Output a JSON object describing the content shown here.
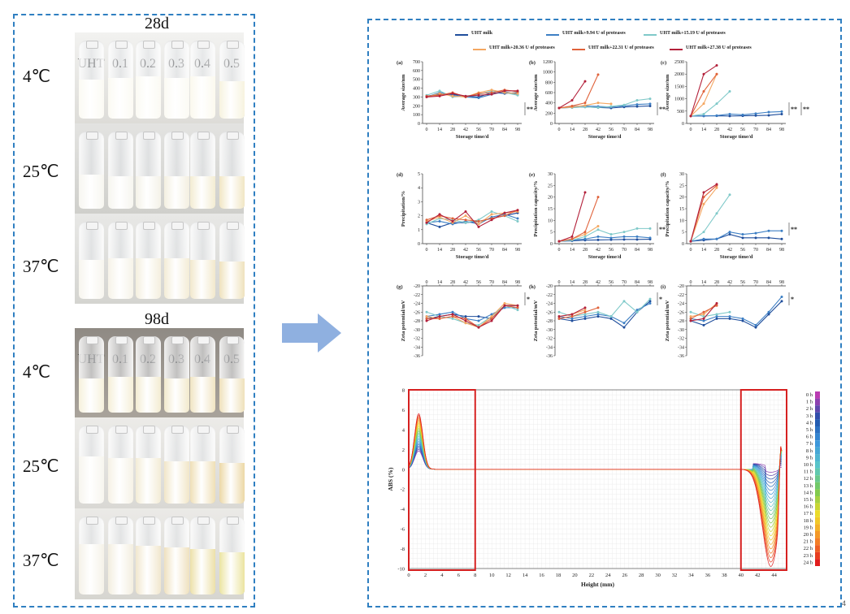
{
  "left_panel": {
    "blocks": [
      {
        "time": "28d",
        "sample_labels": [
          "UHT",
          "0.1",
          "0.2",
          "0.3",
          "0.4",
          "0.5"
        ],
        "temps": [
          "4℃",
          "25℃",
          "37℃"
        ]
      },
      {
        "time": "98d",
        "sample_labels": [
          "UHT",
          "0.1",
          "0.2",
          "0.3",
          "0.4",
          "0.5"
        ],
        "temps": [
          "4℃",
          "25℃",
          "37℃"
        ]
      }
    ]
  },
  "legend": {
    "items": [
      {
        "label": "UHT milk",
        "color": "#1f4e9c"
      },
      {
        "label": "UHT milk+9.94 U of proteases",
        "color": "#3d7fc4"
      },
      {
        "label": "UHT milk+15.19 U of proteases",
        "color": "#7fc9c9"
      },
      {
        "label": "UHT milk+20.36 U of proteases",
        "color": "#f4a761"
      },
      {
        "label": "UHT milk+22.31 U of proteases",
        "color": "#e0623a"
      },
      {
        "label": "UHT milk+27.38 U of proteases",
        "color": "#b3203a"
      }
    ]
  },
  "chart_data": [
    {
      "panel": "(a)",
      "type": "line",
      "ylabel": "Average size/nm",
      "xlabel": "Storage time/d",
      "ylim": [
        0,
        700
      ],
      "yticks": [
        0,
        100,
        200,
        300,
        400,
        500,
        600,
        700
      ],
      "x": [
        0,
        14,
        28,
        42,
        56,
        70,
        84,
        98
      ],
      "significance": "**",
      "series": [
        {
          "name": "UHT milk",
          "values": [
            310,
            330,
            330,
            310,
            300,
            350,
            340,
            350
          ]
        },
        {
          "name": "UHT milk+9.94 U of proteases",
          "values": [
            300,
            350,
            320,
            300,
            290,
            330,
            360,
            330
          ]
        },
        {
          "name": "UHT milk+15.19 U of proteases",
          "values": [
            320,
            370,
            300,
            310,
            330,
            370,
            350,
            320
          ]
        },
        {
          "name": "UHT milk+20.36 U of proteases",
          "values": [
            300,
            340,
            310,
            300,
            350,
            380,
            350,
            340
          ]
        },
        {
          "name": "UHT milk+22.31 U of proteases",
          "values": [
            310,
            320,
            350,
            300,
            340,
            350,
            380,
            360
          ]
        },
        {
          "name": "UHT milk+27.38 U of proteases",
          "values": [
            300,
            310,
            340,
            310,
            320,
            330,
            370,
            370
          ]
        }
      ]
    },
    {
      "panel": "(b)",
      "type": "line",
      "ylabel": "Average size/nm",
      "xlabel": "Storage time/d",
      "ylim": [
        0,
        1200
      ],
      "yticks": [
        0,
        200,
        400,
        600,
        800,
        1000,
        1200
      ],
      "x": [
        0,
        14,
        28,
        42,
        56,
        70,
        84,
        98
      ],
      "significance": "**",
      "series": [
        {
          "name": "UHT milk",
          "values": [
            300,
            310,
            320,
            310,
            300,
            320,
            330,
            340
          ]
        },
        {
          "name": "UHT milk+9.94 U of proteases",
          "values": [
            300,
            330,
            340,
            330,
            320,
            340,
            370,
            380
          ]
        },
        {
          "name": "UHT milk+15.19 U of proteases",
          "values": [
            300,
            310,
            320,
            310,
            330,
            360,
            450,
            480
          ]
        },
        {
          "name": "UHT milk+20.36 U of proteases",
          "values": [
            300,
            320,
            350,
            400,
            380,
            null,
            null,
            null
          ]
        },
        {
          "name": "UHT milk+22.31 U of proteases",
          "values": [
            300,
            340,
            400,
            950,
            null,
            null,
            null,
            null
          ]
        },
        {
          "name": "UHT milk+27.38 U of proteases",
          "values": [
            300,
            450,
            820,
            null,
            null,
            null,
            null,
            null
          ]
        }
      ]
    },
    {
      "panel": "(c)",
      "type": "line",
      "ylabel": "Average size/nm",
      "xlabel": "Storage time/d",
      "ylim": [
        0,
        2500
      ],
      "yticks": [
        0,
        500,
        1000,
        1500,
        2000,
        2500
      ],
      "x": [
        0,
        14,
        28,
        42,
        56,
        70,
        84,
        98
      ],
      "significance": "** **",
      "series": [
        {
          "name": "UHT milk",
          "values": [
            300,
            300,
            310,
            300,
            310,
            320,
            330,
            380
          ]
        },
        {
          "name": "UHT milk+9.94 U of proteases",
          "values": [
            300,
            310,
            320,
            380,
            350,
            400,
            460,
            480
          ]
        },
        {
          "name": "UHT milk+15.19 U of proteases",
          "values": [
            300,
            380,
            800,
            1300,
            null,
            null,
            null,
            null
          ]
        },
        {
          "name": "UHT milk+20.36 U of proteases",
          "values": [
            300,
            800,
            2000,
            null,
            null,
            null,
            null,
            null
          ]
        },
        {
          "name": "UHT milk+22.31 U of proteases",
          "values": [
            300,
            1300,
            2000,
            null,
            null,
            null,
            null,
            null
          ]
        },
        {
          "name": "UHT milk+27.38 U of proteases",
          "values": [
            300,
            2000,
            2350,
            null,
            null,
            null,
            null,
            null
          ]
        }
      ]
    },
    {
      "panel": "(d)",
      "type": "line",
      "ylabel": "Precipitation/%",
      "xlabel": "Storage time/d",
      "ylim": [
        0,
        5
      ],
      "yticks": [
        0,
        1,
        2,
        3,
        4,
        5
      ],
      "x": [
        0,
        14,
        28,
        42,
        56,
        70,
        84,
        98
      ],
      "significance": "",
      "series": [
        {
          "name": "UHT milk",
          "values": [
            1.5,
            1.2,
            1.5,
            1.5,
            1.6,
            1.8,
            2.0,
            2.2
          ]
        },
        {
          "name": "UHT milk+9.94 U of proteases",
          "values": [
            1.5,
            1.6,
            1.4,
            1.6,
            1.4,
            1.9,
            2.1,
            1.8
          ]
        },
        {
          "name": "UHT milk+15.19 U of proteases",
          "values": [
            1.4,
            1.8,
            1.7,
            1.5,
            1.7,
            2.3,
            2.0,
            1.6
          ]
        },
        {
          "name": "UHT milk+20.36 U of proteases",
          "values": [
            1.6,
            1.9,
            1.5,
            2.0,
            1.4,
            2.1,
            2.2,
            2.3
          ]
        },
        {
          "name": "UHT milk+22.31 U of proteases",
          "values": [
            1.7,
            2.0,
            1.8,
            1.7,
            1.6,
            1.8,
            2.0,
            2.4
          ]
        },
        {
          "name": "UHT milk+27.38 U of proteases",
          "values": [
            1.5,
            2.1,
            1.6,
            2.3,
            1.2,
            1.7,
            2.2,
            2.4
          ]
        }
      ]
    },
    {
      "panel": "(e)",
      "type": "line",
      "ylabel": "Precipitation capacity/%",
      "xlabel": "Storage time/d",
      "ylim": [
        0,
        30
      ],
      "yticks": [
        0,
        5,
        10,
        15,
        20,
        25,
        30
      ],
      "x": [
        0,
        14,
        28,
        42,
        56,
        70,
        84,
        98
      ],
      "significance": "**",
      "series": [
        {
          "name": "UHT milk",
          "values": [
            1,
            1.2,
            1.5,
            1.6,
            1.7,
            1.8,
            1.8,
            1.9
          ]
        },
        {
          "name": "UHT milk+9.94 U of proteases",
          "values": [
            1,
            1.5,
            2,
            3,
            2.5,
            3,
            3,
            2.5
          ]
        },
        {
          "name": "UHT milk+15.19 U of proteases",
          "values": [
            1,
            1.5,
            3,
            6,
            4,
            5,
            6.5,
            6.5
          ]
        },
        {
          "name": "UHT milk+20.36 U of proteases",
          "values": [
            1,
            2,
            4,
            7.5,
            null,
            null,
            null,
            null
          ]
        },
        {
          "name": "UHT milk+22.31 U of proteases",
          "values": [
            1,
            2,
            5,
            20,
            null,
            null,
            null,
            null
          ]
        },
        {
          "name": "UHT milk+27.38 U of proteases",
          "values": [
            1,
            3,
            22,
            null,
            null,
            null,
            null,
            null
          ]
        }
      ]
    },
    {
      "panel": "(f)",
      "type": "line",
      "ylabel": "Precipitation capacity/%",
      "xlabel": "Storage time/d",
      "ylim": [
        0,
        30
      ],
      "yticks": [
        0,
        5,
        10,
        15,
        20,
        25,
        30
      ],
      "x": [
        0,
        14,
        28,
        42,
        56,
        70,
        84,
        98
      ],
      "significance": "**",
      "series": [
        {
          "name": "UHT milk",
          "values": [
            1,
            1.5,
            2,
            4,
            2.5,
            2.5,
            2.5,
            2
          ]
        },
        {
          "name": "UHT milk+9.94 U of proteases",
          "values": [
            1,
            2,
            2,
            5,
            4,
            4.5,
            5.5,
            5.5
          ]
        },
        {
          "name": "UHT milk+15.19 U of proteases",
          "values": [
            1,
            5,
            13,
            21,
            null,
            null,
            null,
            null
          ]
        },
        {
          "name": "UHT milk+20.36 U of proteases",
          "values": [
            1,
            17,
            24,
            null,
            null,
            null,
            null,
            null
          ]
        },
        {
          "name": "UHT milk+22.31 U of proteases",
          "values": [
            1,
            20,
            25,
            null,
            null,
            null,
            null,
            null
          ]
        },
        {
          "name": "UHT milk+27.38 U of proteases",
          "values": [
            1,
            22,
            25.5,
            null,
            null,
            null,
            null,
            null
          ]
        }
      ]
    },
    {
      "panel": "(g)",
      "type": "line",
      "ylabel": "Zeta potential/mV",
      "xlabel": "",
      "ylim": [
        -36,
        -20
      ],
      "yticks": [
        -20,
        -22,
        -24,
        -26,
        -28,
        -30,
        -32,
        -34,
        -36
      ],
      "x": [
        0,
        14,
        28,
        42,
        56,
        70,
        84,
        98
      ],
      "significance": "*",
      "series": [
        {
          "name": "UHT milk",
          "values": [
            -27.5,
            -27,
            -26.5,
            -27,
            -27,
            -27.5,
            -24.5,
            -24.5
          ]
        },
        {
          "name": "UHT milk+9.94 U of proteases",
          "values": [
            -27,
            -26.5,
            -26,
            -27.5,
            -28,
            -26.5,
            -25,
            -25
          ]
        },
        {
          "name": "UHT milk+15.19 U of proteases",
          "values": [
            -26,
            -27,
            -27.5,
            -28.5,
            -29,
            -27,
            -24.5,
            -25.5
          ]
        },
        {
          "name": "UHT milk+20.36 U of proteases",
          "values": [
            -27,
            -27.5,
            -27,
            -28.5,
            -29.5,
            -27,
            -24,
            -24.5
          ]
        },
        {
          "name": "UHT milk+22.31 U of proteases",
          "values": [
            -27.5,
            -27.5,
            -27,
            -27.5,
            -29.5,
            -27.5,
            -24.5,
            -25
          ]
        },
        {
          "name": "UHT milk+27.38 U of proteases",
          "values": [
            -28,
            -27,
            -26.5,
            -28,
            -29.5,
            -28,
            -24.5,
            -24.5
          ]
        }
      ]
    },
    {
      "panel": "(h)",
      "type": "line",
      "ylabel": "Zeta potential/mV",
      "xlabel": "",
      "ylim": [
        -36,
        -20
      ],
      "yticks": [
        -20,
        -22,
        -24,
        -26,
        -28,
        -30,
        -32,
        -34,
        -36
      ],
      "x": [
        0,
        14,
        28,
        42,
        56,
        70,
        84,
        98
      ],
      "significance": "*",
      "series": [
        {
          "name": "UHT milk",
          "values": [
            -27.5,
            -28,
            -27.5,
            -27,
            -27.5,
            -29.5,
            -26,
            -23.5
          ]
        },
        {
          "name": "UHT milk+9.94 U of proteases",
          "values": [
            -27,
            -27.5,
            -27,
            -26.5,
            -27,
            -28.5,
            -25.5,
            -24
          ]
        },
        {
          "name": "UHT milk+15.19 U of proteases",
          "values": [
            -26,
            -27,
            -26.5,
            -26,
            -27,
            -23.5,
            -26,
            -23
          ]
        },
        {
          "name": "UHT milk+20.36 U of proteases",
          "values": [
            -27,
            -26.5,
            -25.5,
            null,
            null,
            null,
            null,
            null
          ]
        },
        {
          "name": "UHT milk+22.31 U of proteases",
          "values": [
            -27.5,
            -27,
            -26,
            -25,
            null,
            null,
            null,
            null
          ]
        },
        {
          "name": "UHT milk+27.38 U of proteases",
          "values": [
            -27,
            -26.5,
            -25,
            null,
            null,
            null,
            null,
            null
          ]
        }
      ]
    },
    {
      "panel": "(i)",
      "type": "line",
      "ylabel": "Zeta potential/mV",
      "xlabel": "",
      "ylim": [
        -36,
        -20
      ],
      "yticks": [
        -20,
        -22,
        -24,
        -26,
        -28,
        -30,
        -32,
        -34,
        -36
      ],
      "x": [
        0,
        14,
        28,
        42,
        56,
        70,
        84,
        98
      ],
      "significance": "*",
      "series": [
        {
          "name": "UHT milk",
          "values": [
            -28,
            -29,
            -27.5,
            -27.5,
            -28,
            -29.5,
            -26.5,
            -23.5
          ]
        },
        {
          "name": "UHT milk+9.94 U of proteases",
          "values": [
            -27.5,
            -28,
            -27,
            -27,
            -27.5,
            -29,
            -26,
            -22.5
          ]
        },
        {
          "name": "UHT milk+15.19 U of proteases",
          "values": [
            -26,
            -27,
            -26.5,
            -26,
            null,
            null,
            null,
            null
          ]
        },
        {
          "name": "UHT milk+20.36 U of proteases",
          "values": [
            -27,
            -26.5,
            -24,
            null,
            null,
            null,
            null,
            null
          ]
        },
        {
          "name": "UHT milk+22.31 U of proteases",
          "values": [
            -27.5,
            -26,
            -24.5,
            null,
            null,
            null,
            null,
            null
          ]
        },
        {
          "name": "UHT milk+27.38 U of proteases",
          "values": [
            -28,
            -27.5,
            -24,
            null,
            null,
            null,
            null,
            null
          ]
        }
      ]
    },
    {
      "panel": "stability",
      "type": "line",
      "ylabel": "ABS (%)",
      "xlabel": "Height (mm)",
      "ylim": [
        -10,
        8
      ],
      "xlim": [
        0,
        45
      ],
      "yticks": [
        8,
        6,
        4,
        2,
        0,
        -2,
        -4,
        -6,
        -8,
        -10
      ],
      "xticks": [
        0,
        2,
        4,
        6,
        8,
        10,
        12,
        14,
        16,
        18,
        20,
        22,
        24,
        26,
        28,
        30,
        32,
        34,
        36,
        38,
        40,
        42,
        44
      ],
      "time_labels": [
        "0 h",
        "1 h",
        "2 h",
        "3 h",
        "4 h",
        "5 h",
        "6 h",
        "7 h",
        "8 h",
        "9 h",
        "10 h",
        "11 h",
        "12 h",
        "13 h",
        "14 h",
        "15 h",
        "16 h",
        "17 h",
        "18 h",
        "19 h",
        "20 h",
        "21 h",
        "22 h",
        "23 h",
        "24 h"
      ],
      "peak_left": {
        "x": 1.2,
        "y": 5.6
      },
      "dip_right": {
        "x": 43.6,
        "y": -9.8
      },
      "highlight_regions": [
        [
          0,
          8
        ],
        [
          40,
          45.5
        ]
      ]
    }
  ],
  "page_number": "4"
}
